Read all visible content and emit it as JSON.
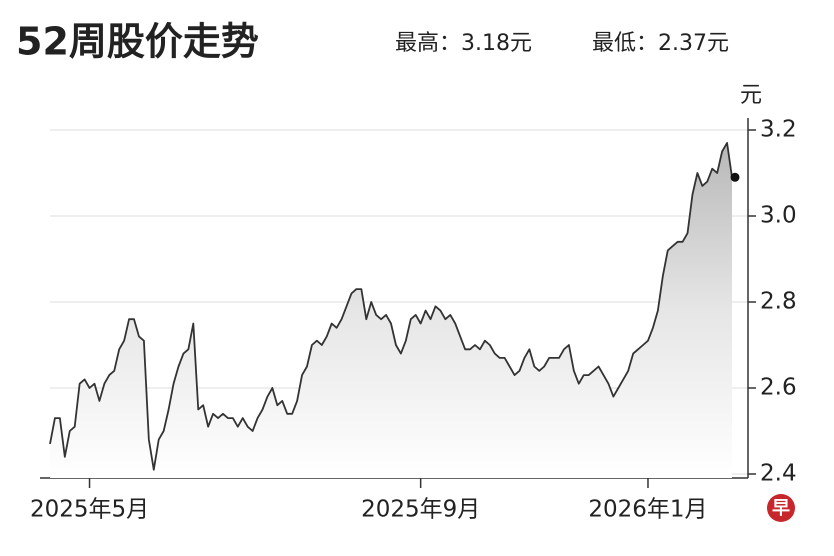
{
  "chart_data": {
    "type": "line",
    "title": "52周股价走势",
    "high": "最高：3.18元",
    "low": "最低：2.37元",
    "y_unit": "元",
    "logo": "早",
    "categories": [
      null,
      null,
      null,
      null,
      null,
      null,
      null,
      null,
      "2025年5月",
      null,
      null,
      null,
      null,
      null,
      null,
      null,
      null,
      null,
      null,
      null,
      null,
      null,
      null,
      null,
      null,
      null,
      null,
      null,
      null,
      null,
      null,
      null,
      null,
      null,
      null,
      null,
      null,
      null,
      null,
      null,
      null,
      null,
      null,
      null,
      null,
      null,
      null,
      null,
      null,
      null,
      null,
      null,
      null,
      null,
      null,
      null,
      null,
      null,
      null,
      null,
      null,
      null,
      null,
      null,
      null,
      null,
      null,
      null,
      null,
      null,
      null,
      null,
      null,
      null,
      null,
      "2025年9月",
      null,
      null,
      null,
      null,
      null,
      null,
      null,
      null,
      null,
      null,
      null,
      null,
      null,
      null,
      null,
      null,
      null,
      null,
      null,
      null,
      null,
      null,
      null,
      null,
      null,
      null,
      null,
      null,
      null,
      null,
      null,
      null,
      null,
      null,
      null,
      null,
      null,
      null,
      null,
      null,
      null,
      null,
      null,
      null,
      null,
      "2026年1月",
      null,
      null,
      null,
      null,
      null,
      null,
      null,
      null,
      null,
      null,
      null,
      null,
      null,
      null,
      null,
      null,
      null
    ],
    "values": [
      2.47,
      2.53,
      2.53,
      2.44,
      2.5,
      2.51,
      2.61,
      2.62,
      2.6,
      2.61,
      2.57,
      2.61,
      2.63,
      2.64,
      2.69,
      2.71,
      2.76,
      2.76,
      2.72,
      2.71,
      2.48,
      2.41,
      2.48,
      2.5,
      2.55,
      2.61,
      2.65,
      2.68,
      2.69,
      2.75,
      2.55,
      2.56,
      2.51,
      2.54,
      2.53,
      2.54,
      2.53,
      2.53,
      2.51,
      2.53,
      2.51,
      2.5,
      2.53,
      2.55,
      2.58,
      2.6,
      2.56,
      2.57,
      2.54,
      2.54,
      2.57,
      2.63,
      2.65,
      2.7,
      2.71,
      2.7,
      2.72,
      2.75,
      2.74,
      2.76,
      2.79,
      2.82,
      2.83,
      2.83,
      2.76,
      2.8,
      2.77,
      2.76,
      2.77,
      2.75,
      2.7,
      2.68,
      2.71,
      2.76,
      2.77,
      2.75,
      2.78,
      2.76,
      2.79,
      2.78,
      2.76,
      2.77,
      2.75,
      2.72,
      2.69,
      2.69,
      2.7,
      2.69,
      2.71,
      2.7,
      2.68,
      2.67,
      2.67,
      2.65,
      2.63,
      2.64,
      2.67,
      2.69,
      2.65,
      2.64,
      2.65,
      2.67,
      2.67,
      2.67,
      2.69,
      2.7,
      2.64,
      2.61,
      2.63,
      2.63,
      2.64,
      2.65,
      2.63,
      2.61,
      2.58,
      2.6,
      2.62,
      2.64,
      2.68,
      2.69,
      2.7,
      2.71,
      2.74,
      2.78,
      2.86,
      2.92,
      2.93,
      2.94,
      2.94,
      2.96,
      3.05,
      3.1,
      3.07,
      3.08,
      3.11,
      3.1,
      3.15,
      3.17,
      3.09
    ],
    "color": "#333333",
    "ylim": [
      2.4,
      3.2
    ],
    "yticks": [
      2.4,
      2.6,
      2.8,
      {
        "value": 3,
        "label": "3.0"
      },
      3.2
    ],
    "grid": true
  }
}
